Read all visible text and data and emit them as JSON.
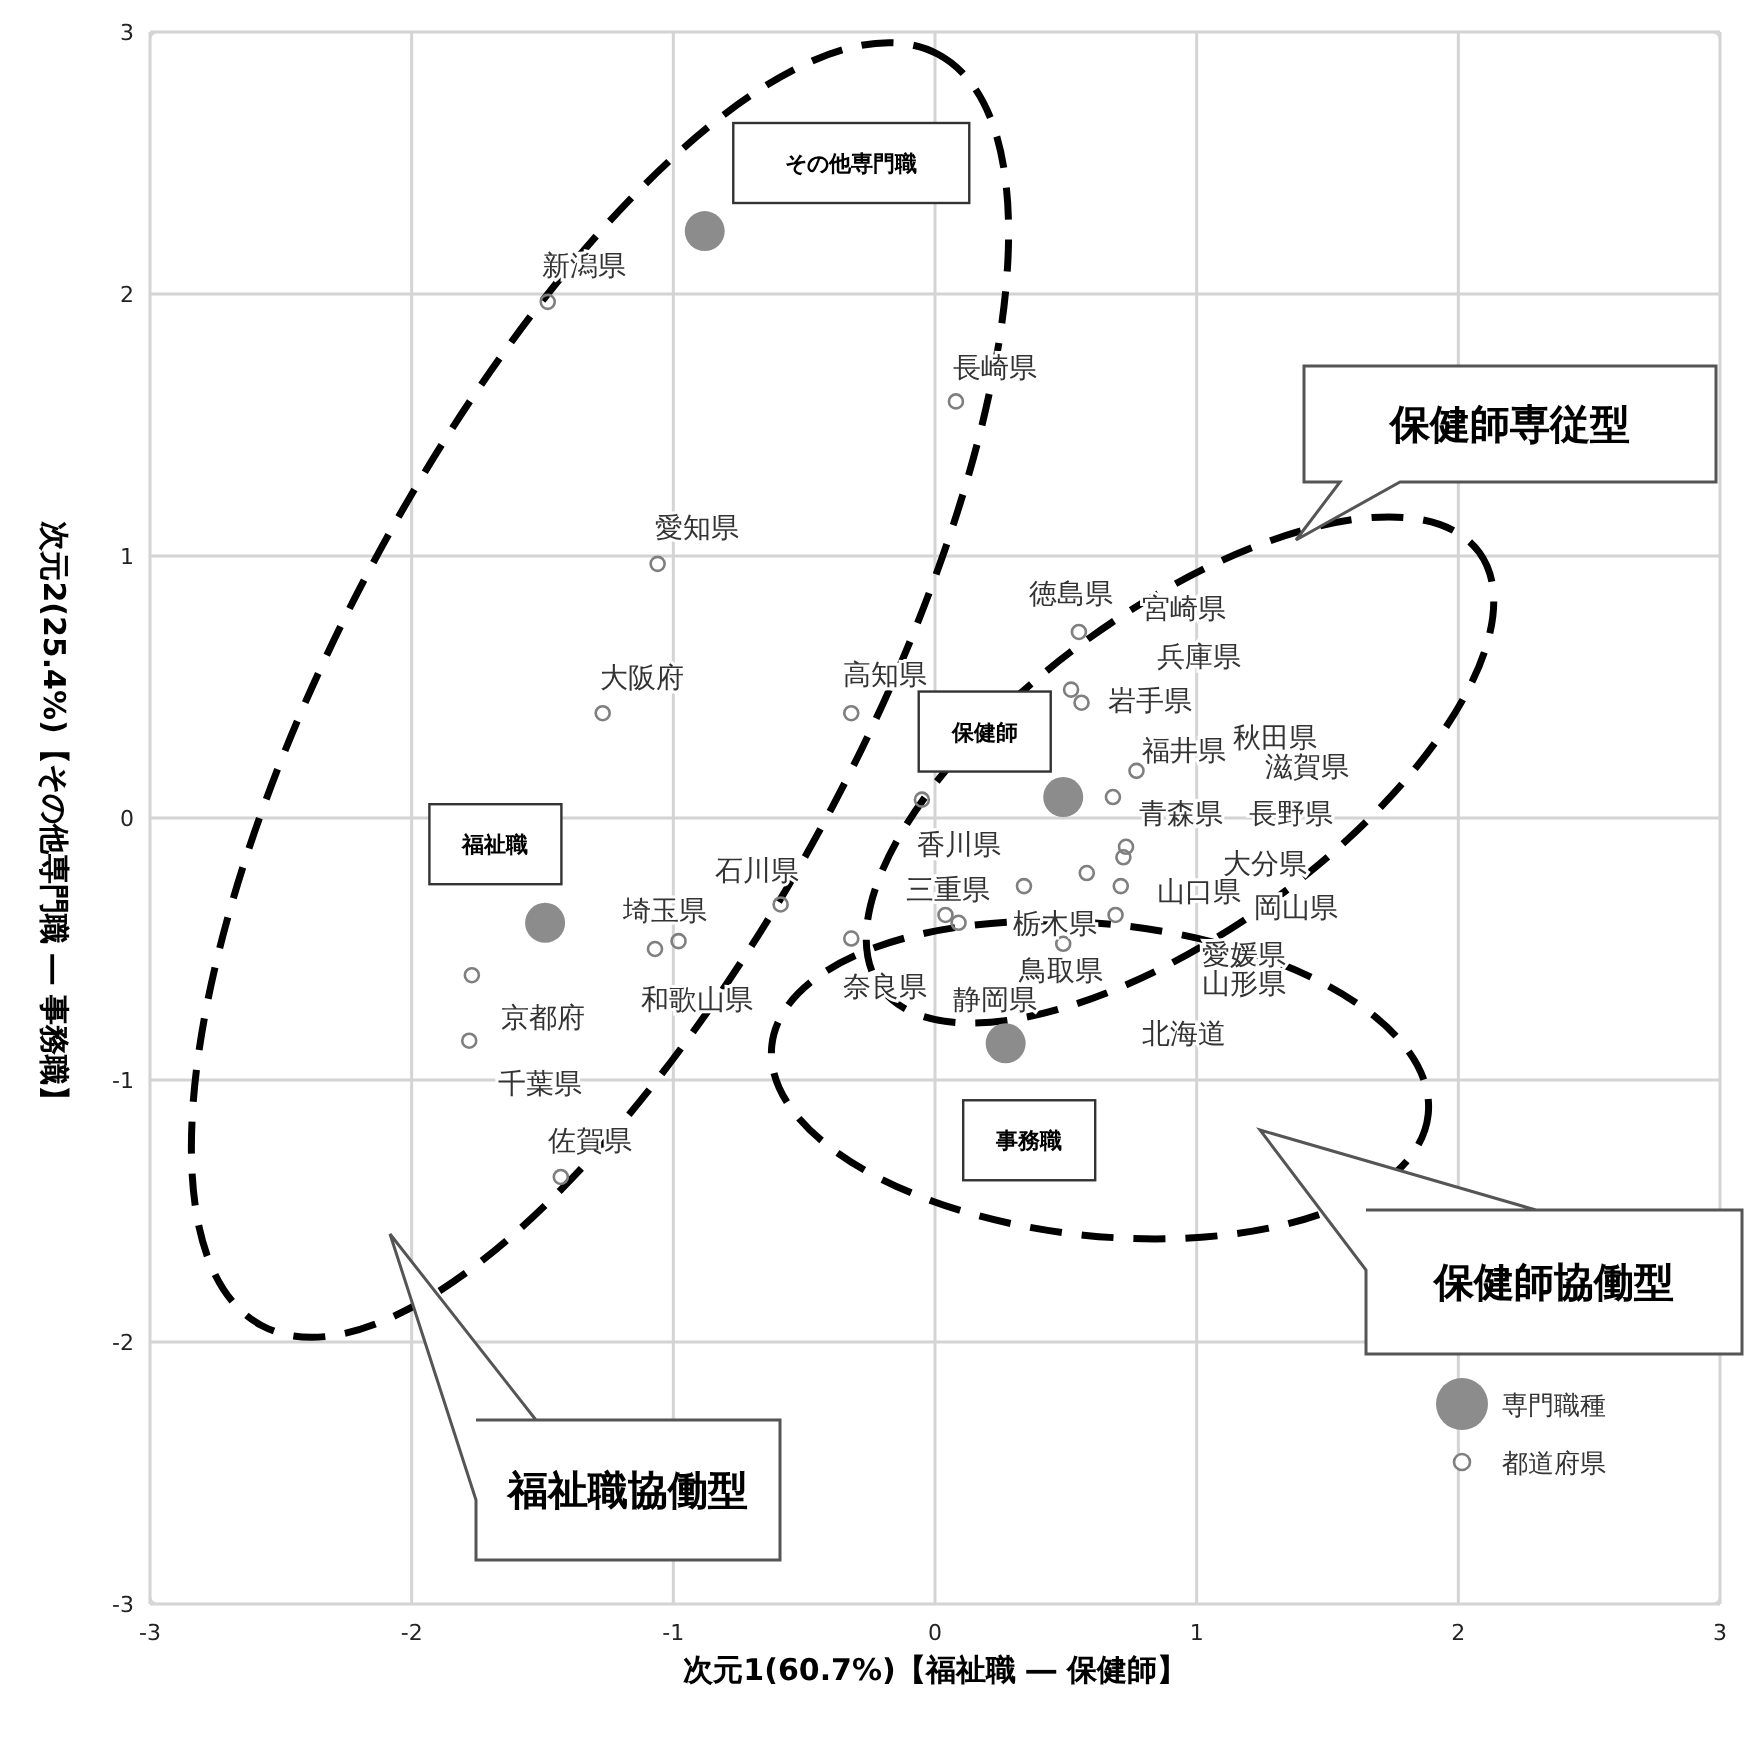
{
  "chart_data": {
    "type": "scatter",
    "xlabel": "次元1(60.7%)【福祉職 ― 保健師】",
    "ylabel": "次元2(25.4%)【その他専門職 ― 事務職】",
    "xlim": [
      -3,
      3
    ],
    "ylim": [
      -3,
      3
    ],
    "xticks": [
      -3,
      -2,
      -1,
      0,
      1,
      2,
      3
    ],
    "yticks": [
      -3,
      -2,
      -1,
      0,
      1,
      2,
      3
    ],
    "grid": true,
    "legend": "bottom right",
    "marker": "circle",
    "series": [
      {
        "name": "専門職種",
        "color": "#8c8c8c",
        "x": [
          -0.88,
          -1.49,
          0.49,
          0.27
        ],
        "values": [
          2.24,
          -0.4,
          0.08,
          -0.86
        ]
      },
      {
        "name": "都道府県",
        "color": "#7f7f7f",
        "x": [
          -1.48,
          0.08,
          -1.06,
          -1.27,
          -0.32,
          -0.59,
          -1.07,
          -0.98,
          -1.77,
          -1.78,
          -1.43,
          -0.32,
          -0.05,
          0.55,
          0.52,
          0.56,
          0.77,
          0.68,
          0.73,
          0.72,
          0.34,
          0.58,
          0.71,
          0.04,
          0.09,
          0.69,
          0.49
        ],
        "values": [
          1.97,
          1.59,
          0.97,
          0.4,
          0.4,
          -0.33,
          -0.5,
          -0.47,
          -0.6,
          -0.85,
          -1.37,
          -0.46,
          0.07,
          0.71,
          0.49,
          0.44,
          0.18,
          0.08,
          -0.11,
          -0.15,
          -0.26,
          -0.21,
          -0.26,
          -0.37,
          -0.4,
          -0.37,
          -0.48
        ]
      }
    ],
    "annotations": [
      "その他専門職",
      "福祉職",
      "保健師",
      "事務職",
      "保健師専従型",
      "保健師協働型",
      "福祉職協働型",
      "新潟県",
      "長崎県",
      "愛知県",
      "徳島県",
      "宮崎県",
      "兵庫県",
      "大阪府",
      "高知県",
      "岩手県",
      "秋田県",
      "福井県",
      "滋賀県",
      "青森県",
      "長野県",
      "香川県",
      "大分県",
      "三重県",
      "山口県",
      "石川県",
      "岡山県",
      "埼玉県",
      "栃木県",
      "愛媛県",
      "和歌山県",
      "鳥取県",
      "山形県",
      "京都府",
      "奈良県",
      "静岡県",
      "北海道",
      "千葉県",
      "佐賀県"
    ]
  }
}
